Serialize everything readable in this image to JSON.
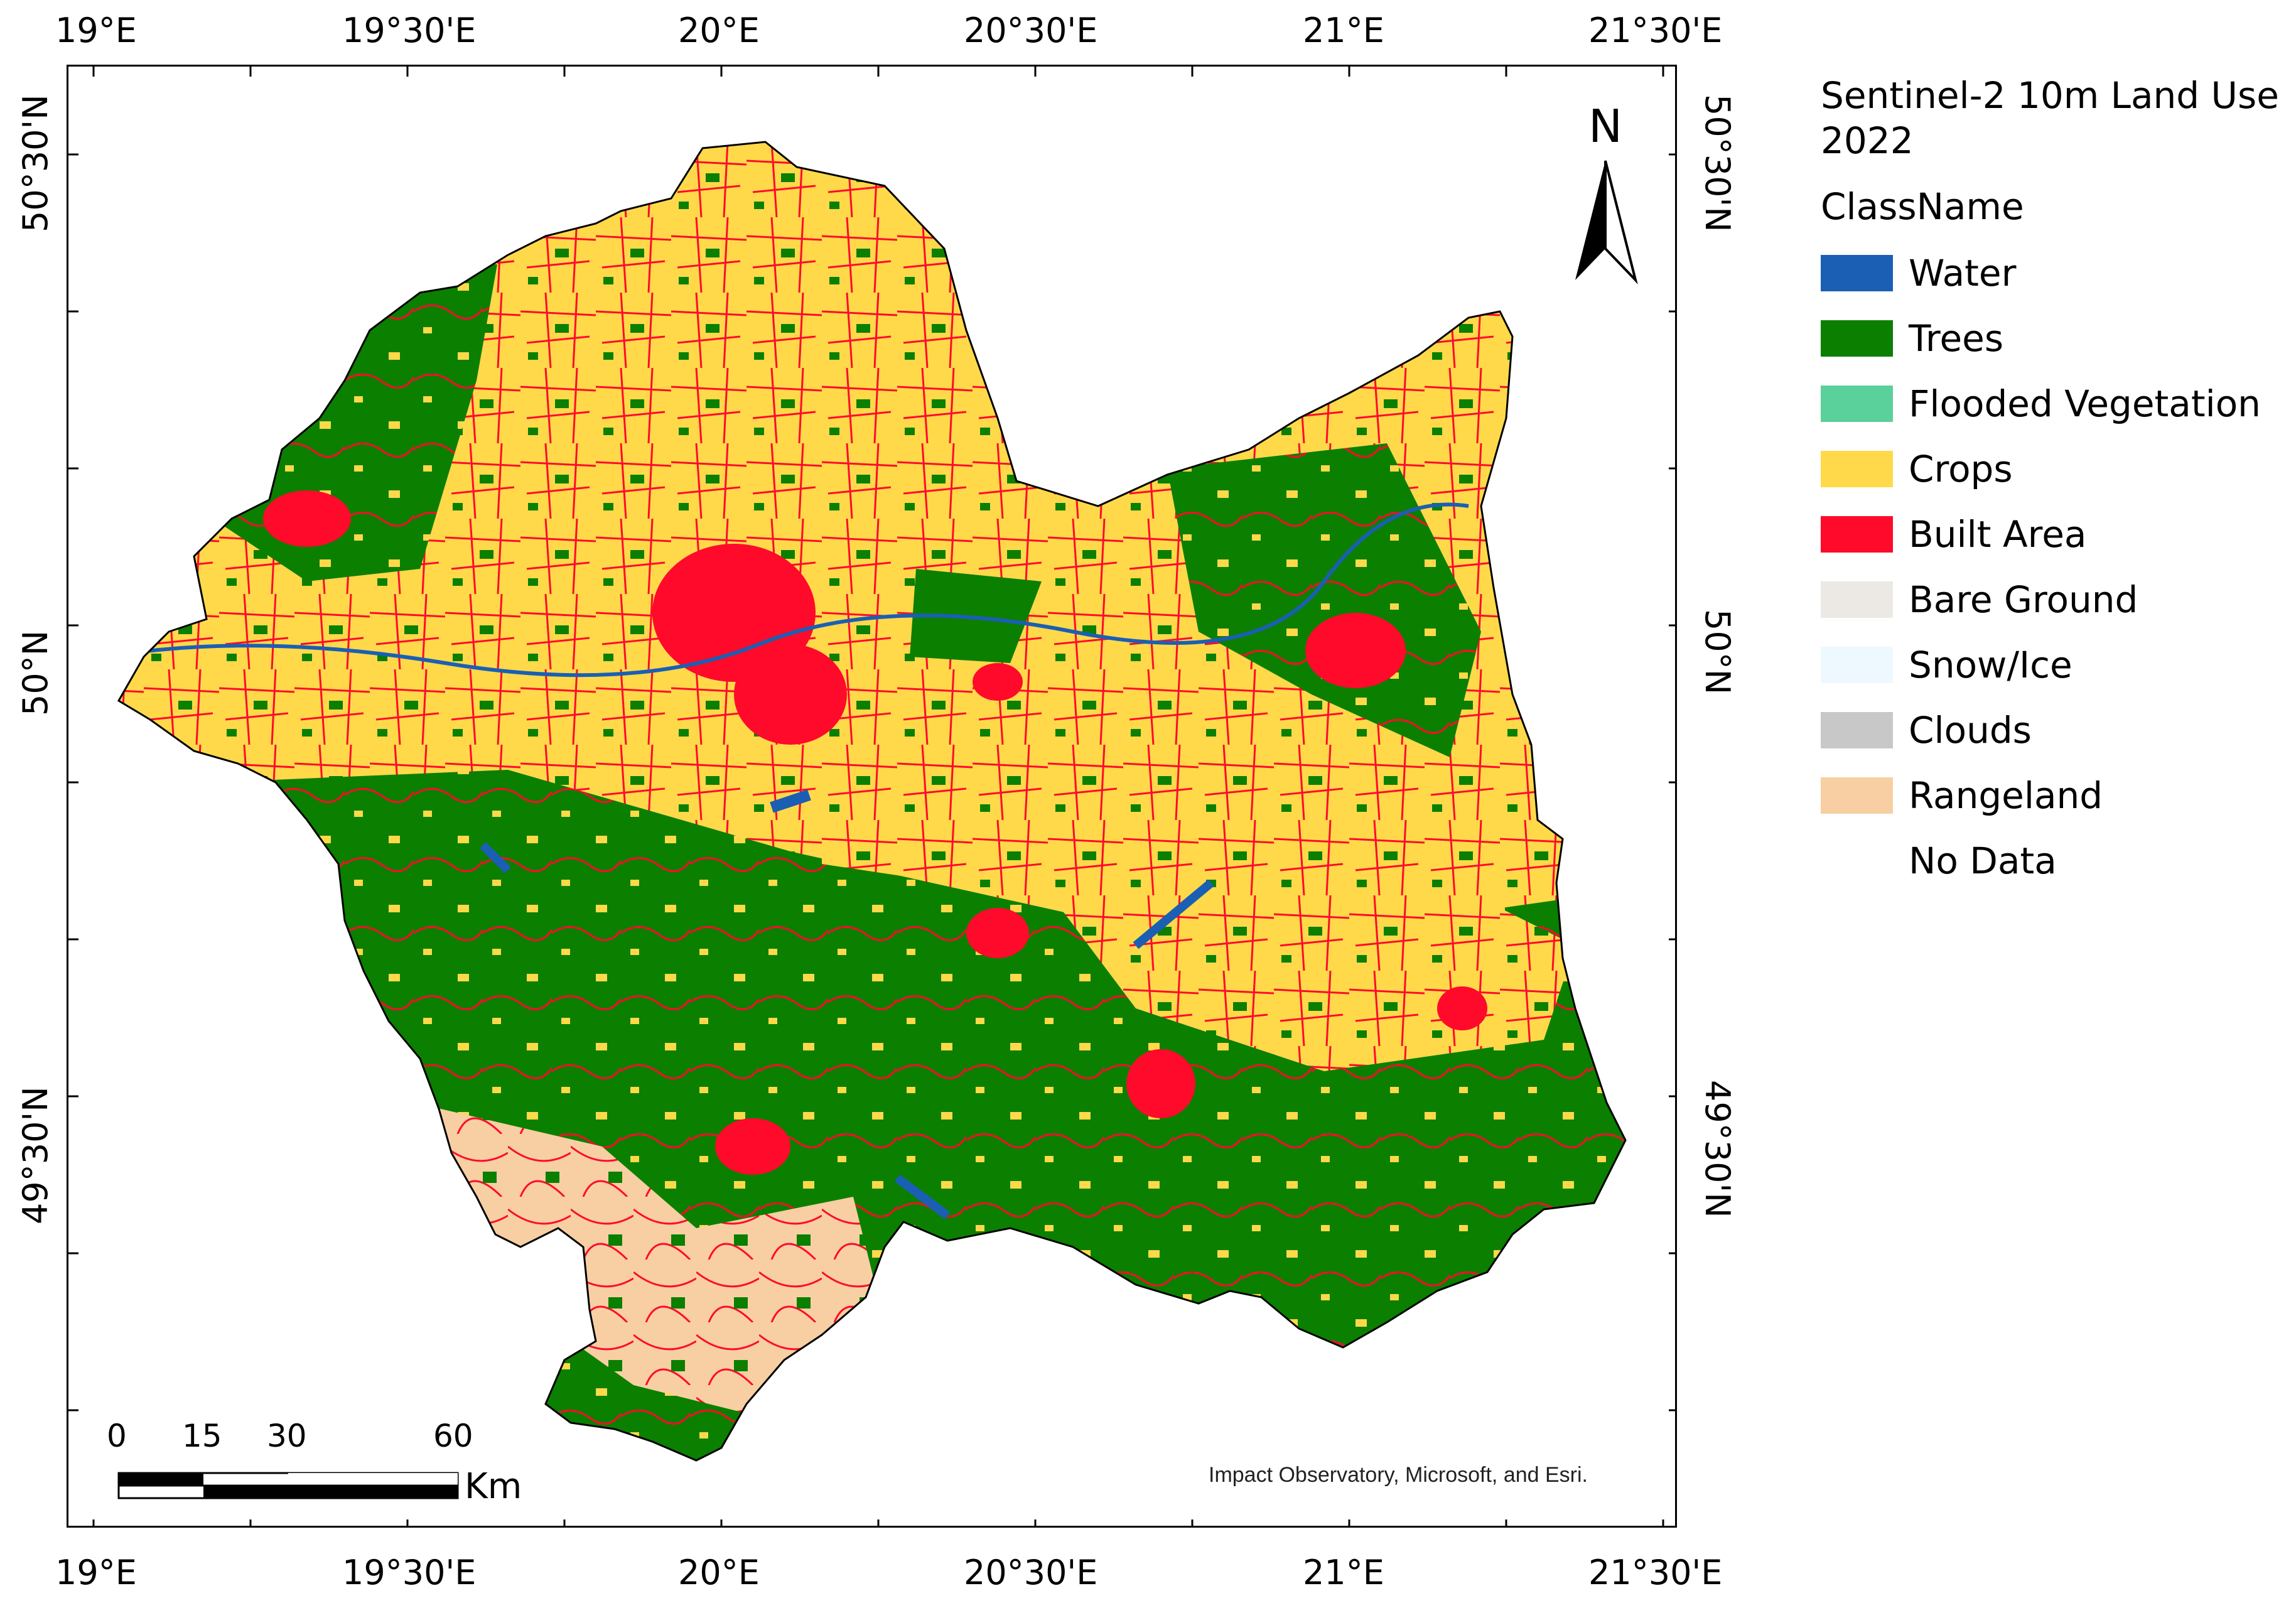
{
  "axes": {
    "lon_labels": [
      "19°E",
      "19°30'E",
      "20°E",
      "20°30'E",
      "21°E",
      "21°30'E"
    ],
    "lat_labels": [
      "50°30'N",
      "50°N",
      "49°30'N"
    ]
  },
  "legend": {
    "title": "Sentinel-2 10m Land Use 2022",
    "title_line1": "Sentinel-2 10m Land Use",
    "title_line2": "2022",
    "subtitle": "ClassName",
    "classes": [
      {
        "label": "Water",
        "color": "#1a5fb4"
      },
      {
        "label": "Trees",
        "color": "#0b7f00"
      },
      {
        "label": "Flooded Vegetation",
        "color": "#5ad09a"
      },
      {
        "label": "Crops",
        "color": "#ffd94a"
      },
      {
        "label": "Built Area",
        "color": "#ff0a2b"
      },
      {
        "label": "Bare Ground",
        "color": "#ece9e4"
      },
      {
        "label": "Snow/Ice",
        "color": "#eef8ff"
      },
      {
        "label": "Clouds",
        "color": "#c8c8c8"
      },
      {
        "label": "Rangeland",
        "color": "#f7cfa3"
      },
      {
        "label": "No Data",
        "color": ""
      }
    ]
  },
  "north_arrow": {
    "label": "N"
  },
  "scale_bar": {
    "ticks": [
      "0",
      "15",
      "30",
      "60"
    ],
    "unit": "Km"
  },
  "credit": "Impact Observatory, Microsoft, and Esri."
}
